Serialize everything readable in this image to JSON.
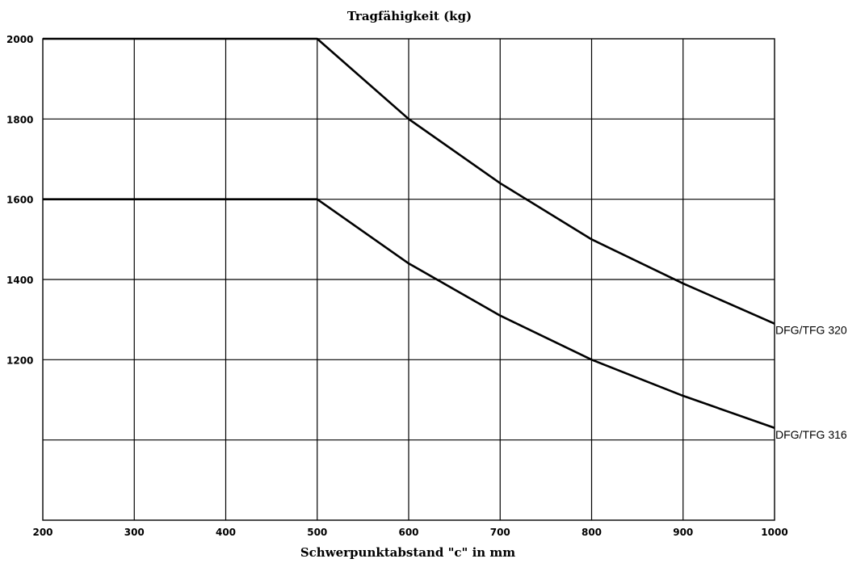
{
  "chart_data": {
    "type": "line",
    "title": "Tragfähigkeit (kg)",
    "xlabel": "Schwerpunktabstand \"c\" in mm",
    "ylabel": "",
    "xlim": [
      200,
      1000
    ],
    "ylim": [
      800,
      2000
    ],
    "x_ticks": [
      "200",
      "300",
      "400",
      "500",
      "600",
      "700",
      "800",
      "900",
      "1000"
    ],
    "y_ticks": [
      "1200",
      "1400",
      "1600",
      "1800",
      "2000"
    ],
    "grid": true,
    "series": [
      {
        "name": "DFG/TFG 320",
        "x": [
          200,
          300,
          400,
          500,
          600,
          700,
          800,
          900,
          1000
        ],
        "values": [
          2000,
          2000,
          2000,
          2000,
          1800,
          1640,
          1500,
          1390,
          1290
        ]
      },
      {
        "name": "DFG/TFG 316",
        "x": [
          200,
          300,
          400,
          500,
          600,
          700,
          800,
          900,
          1000
        ],
        "values": [
          1600,
          1600,
          1600,
          1600,
          1440,
          1310,
          1200,
          1110,
          1030
        ]
      }
    ]
  }
}
